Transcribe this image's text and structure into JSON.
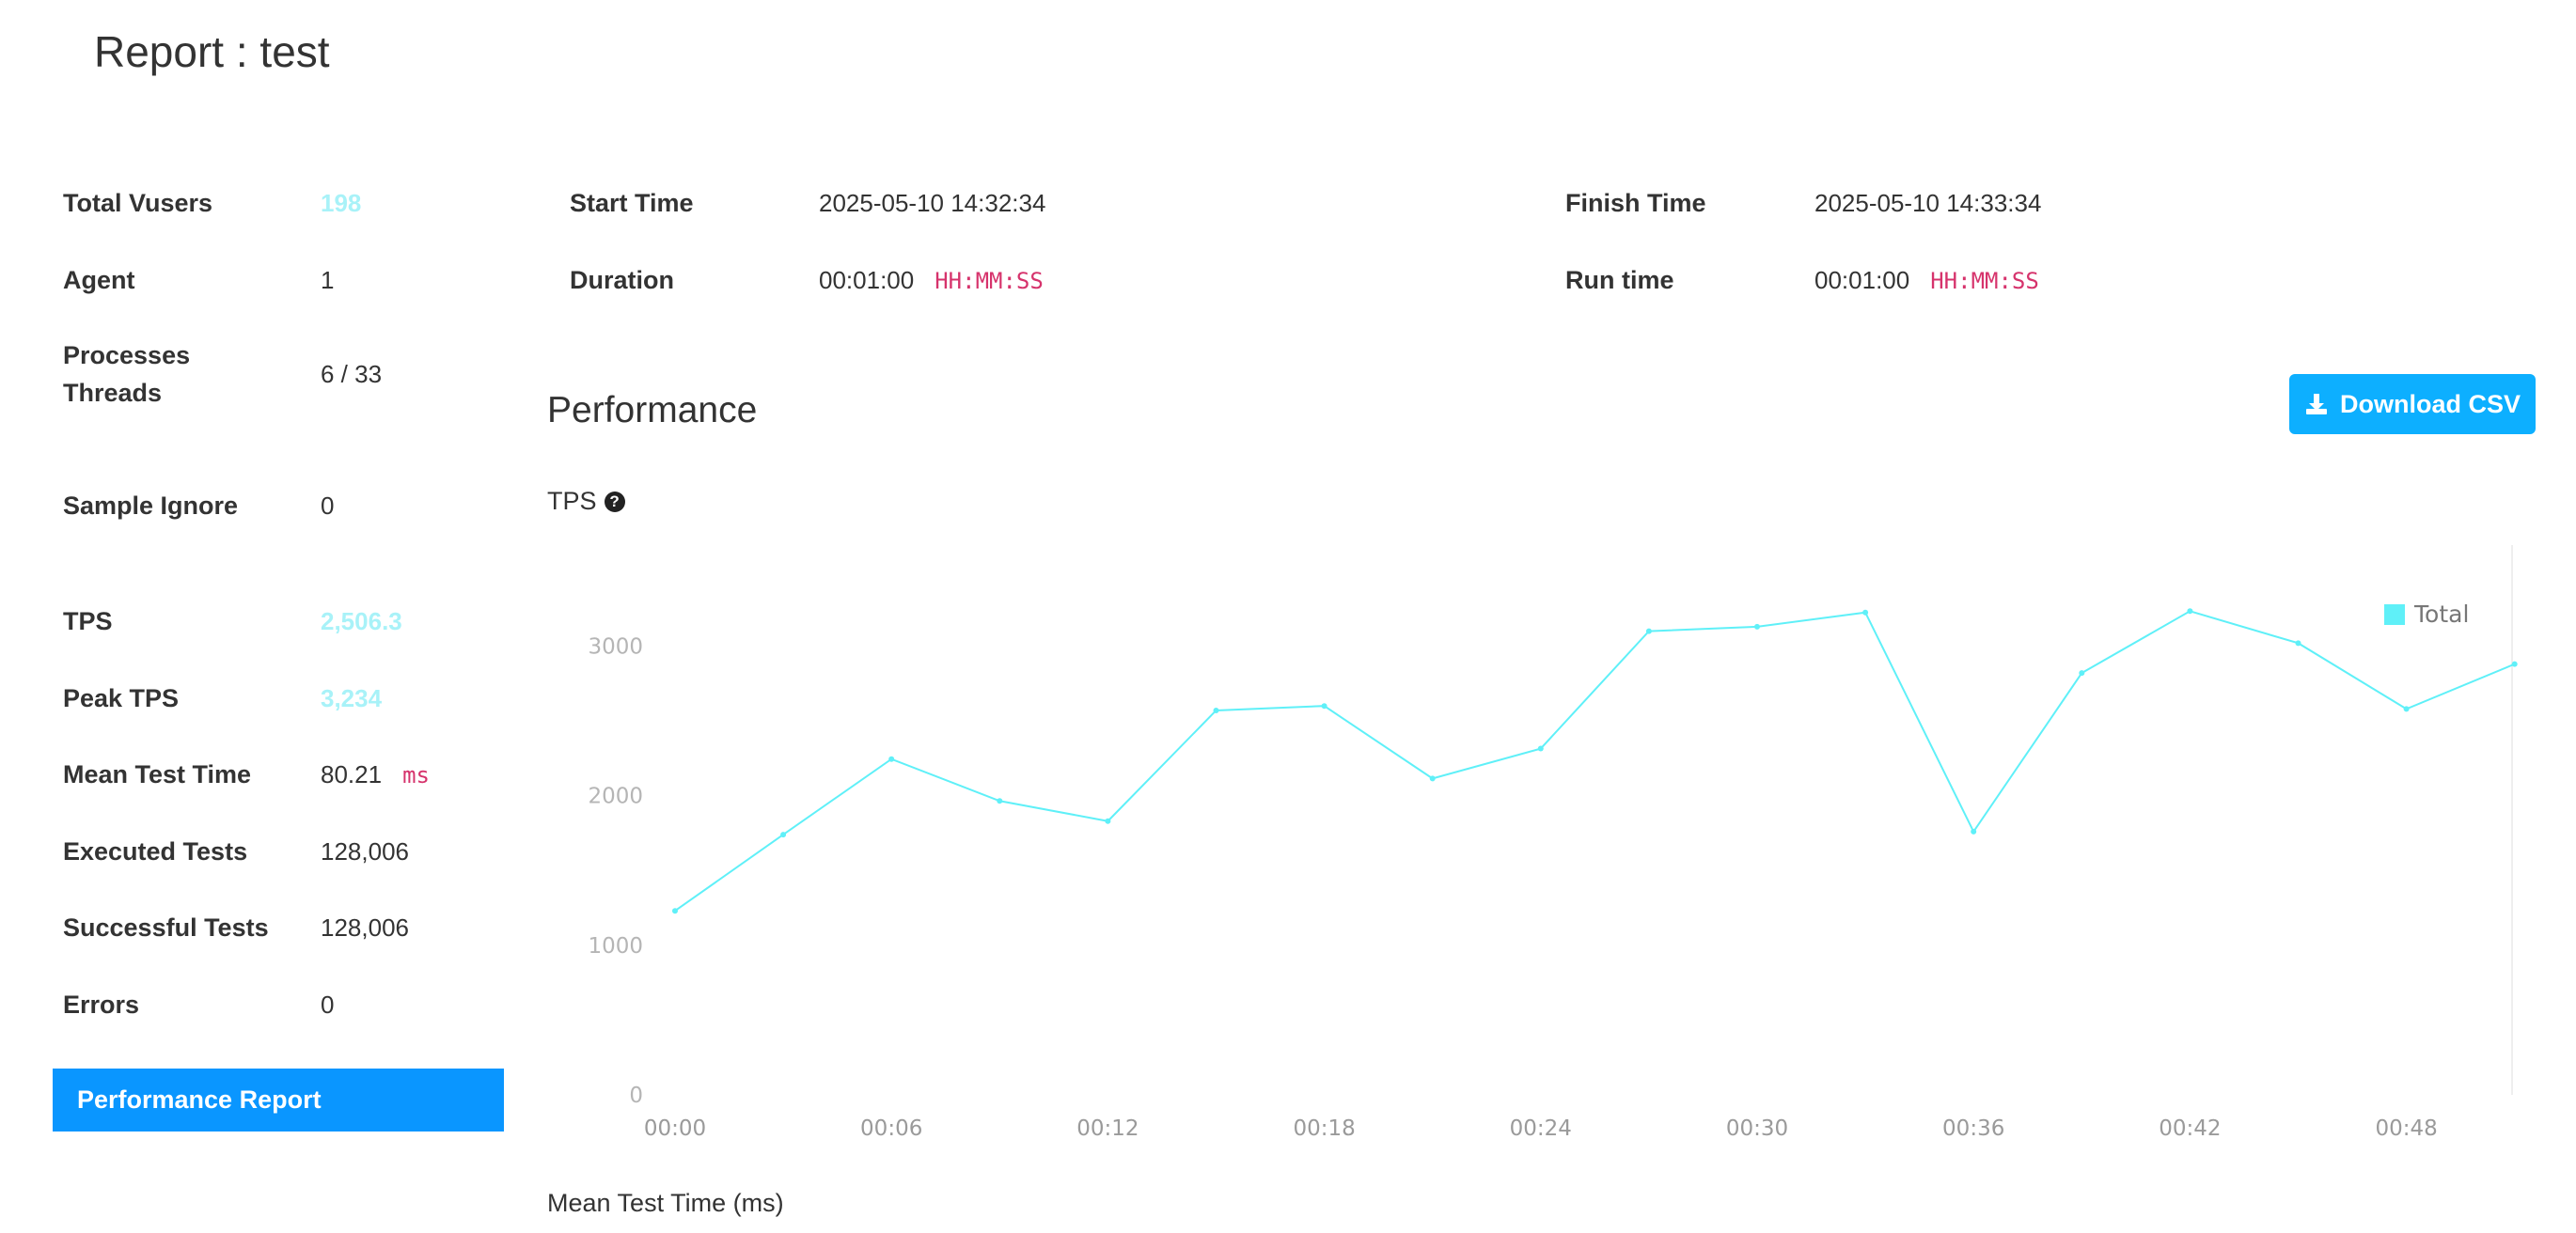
{
  "report": {
    "title": "Report : test"
  },
  "summary": {
    "total_vusers": {
      "label": "Total Vusers",
      "value": "198"
    },
    "agent": {
      "label": "Agent",
      "value": "1"
    },
    "processes_threads": {
      "label_line1": "Processes",
      "label_line2": "Threads",
      "value": "6 / 33"
    },
    "sample_ignore": {
      "label": "Sample Ignore",
      "value": "0"
    },
    "tps": {
      "label": "TPS",
      "value": "2,506.3"
    },
    "peak_tps": {
      "label": "Peak TPS",
      "value": "3,234"
    },
    "mean_test_time": {
      "label": "Mean Test Time",
      "value": "80.21",
      "unit": "ms"
    },
    "executed_tests": {
      "label": "Executed Tests",
      "value": "128,006"
    },
    "successful_tests": {
      "label": "Successful Tests",
      "value": "128,006"
    },
    "errors": {
      "label": "Errors",
      "value": "0"
    }
  },
  "times": {
    "start_time": {
      "label": "Start Time",
      "value": "2025-05-10 14:32:34"
    },
    "duration": {
      "label": "Duration",
      "value": "00:01:00",
      "unit": "HH:MM:SS"
    },
    "finish_time": {
      "label": "Finish Time",
      "value": "2025-05-10 14:33:34"
    },
    "run_time": {
      "label": "Run time",
      "value": "00:01:00",
      "unit": "HH:MM:SS"
    }
  },
  "sidebar": {
    "performance_report_label": "Performance Report"
  },
  "performance": {
    "section_title": "Performance",
    "download_label": "Download CSV",
    "tps_chart_label": "TPS",
    "mean_test_time_label": "Mean Test Time (ms)"
  },
  "colors": {
    "accent_blue": "#0a96ff",
    "button_blue": "#0dafff",
    "series_cyan": "#5ff0f8",
    "unit_pink": "#d6336c"
  },
  "chart_data": {
    "type": "line",
    "title": "TPS",
    "x": [
      "00:00",
      "00:03",
      "00:06",
      "00:09",
      "00:12",
      "00:15",
      "00:18",
      "00:21",
      "00:24",
      "00:27",
      "00:30",
      "00:33",
      "00:36",
      "00:39",
      "00:42",
      "00:45",
      "00:48",
      "00:51"
    ],
    "x_tick_labels": [
      "00:00",
      "00:06",
      "00:12",
      "00:18",
      "00:24",
      "00:30",
      "00:36",
      "00:42",
      "00:48"
    ],
    "y_ticks": [
      0,
      1000,
      2000,
      3000
    ],
    "ylim": [
      0,
      3550
    ],
    "series": [
      {
        "name": "Total",
        "color": "#5ff0f8",
        "values": [
          1230,
          1740,
          2245,
          1965,
          1830,
          2570,
          2600,
          2115,
          2315,
          3100,
          3130,
          3225,
          1760,
          2820,
          3234,
          3020,
          2580,
          2880
        ]
      }
    ],
    "legend": "top-right",
    "grid": false
  }
}
